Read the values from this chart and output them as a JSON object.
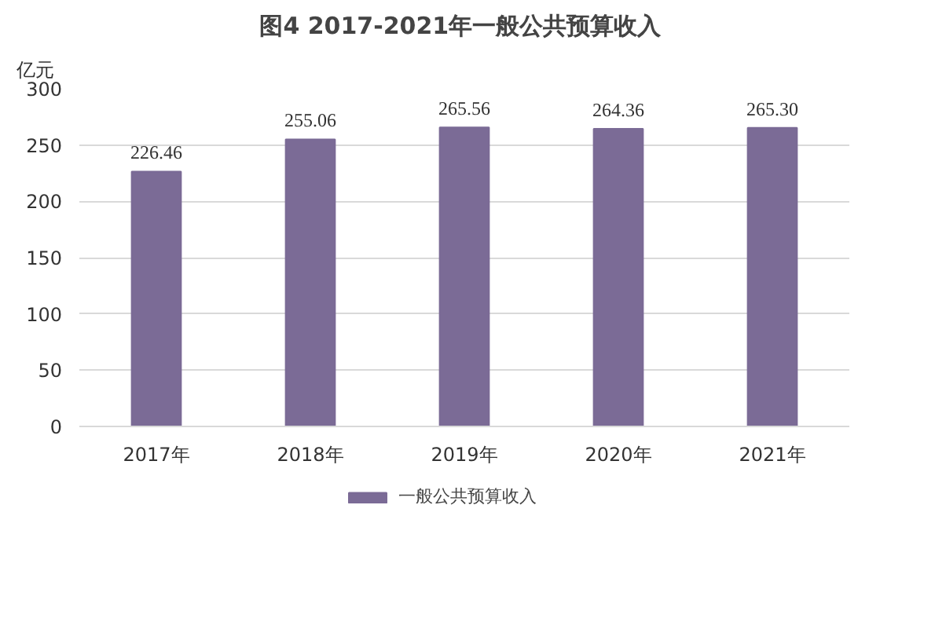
{
  "chart_data": {
    "type": "bar",
    "title": "图4  2017-2021年一般公共预算收入",
    "ylabel": "亿元",
    "categories": [
      "2017年",
      "2018年",
      "2019年",
      "2020年",
      "2021年"
    ],
    "series": [
      {
        "name": "一般公共预算收入",
        "color": "#7b6b96",
        "values": [
          226.46,
          255.06,
          265.56,
          264.36,
          265.3
        ],
        "value_labels": [
          "226.46",
          "255.06",
          "265.56",
          "264.36",
          "265.30"
        ]
      }
    ],
    "ylim": [
      0,
      300
    ],
    "yticks": [
      0,
      50,
      100,
      150,
      200,
      250,
      300
    ],
    "grid": "y",
    "legend": "bottom"
  }
}
